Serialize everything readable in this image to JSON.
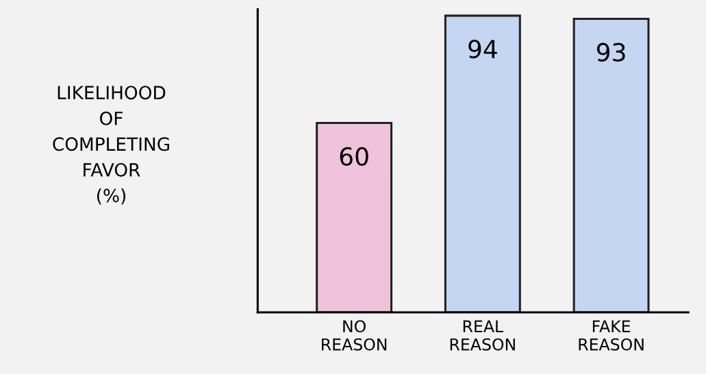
{
  "chart_data": {
    "type": "bar",
    "ylabel": "LIKELIHOOD\nOF\nCOMPLETING\nFAVOR\n(%)",
    "categories": [
      "NO\nREASON",
      "REAL\nREASON",
      "FAKE\nREASON"
    ],
    "values": [
      60,
      94,
      93
    ],
    "colors": [
      "#f0c2dc",
      "#c4d6f2",
      "#c4d6f2"
    ],
    "ylim": [
      0,
      96
    ],
    "data_labels": true,
    "grid": false,
    "legend": false,
    "tick_labels": "x"
  }
}
